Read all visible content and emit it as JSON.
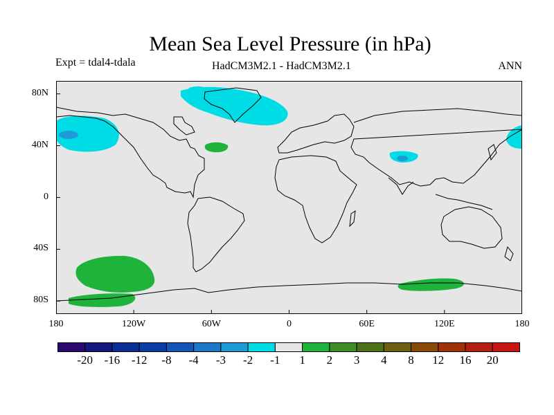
{
  "header": {
    "title": "Mean Sea Level Pressure (in hPa)",
    "experiment": "Expt = tdal4-tdala",
    "models": "HadCM3M2.1 - HadCM3M2.1",
    "season": "ANN"
  },
  "axes": {
    "lat_ticks": [
      {
        "value": 80,
        "label": "80N"
      },
      {
        "value": 40,
        "label": "40N"
      },
      {
        "value": 0,
        "label": "0"
      },
      {
        "value": -40,
        "label": "40S"
      },
      {
        "value": -80,
        "label": "80S"
      }
    ],
    "lon_ticks": [
      {
        "value": -180,
        "label": "180"
      },
      {
        "value": -120,
        "label": "120W"
      },
      {
        "value": -60,
        "label": "60W"
      },
      {
        "value": 0,
        "label": "0"
      },
      {
        "value": 60,
        "label": "60E"
      },
      {
        "value": 120,
        "label": "120E"
      },
      {
        "value": 180,
        "label": "180"
      }
    ],
    "lon_range": [
      -180,
      180
    ],
    "lat_range": [
      -90,
      90
    ]
  },
  "colorbar": {
    "colors": [
      "#2a0a6e",
      "#14187e",
      "#0a2d96",
      "#0a3ea6",
      "#1455b8",
      "#1e78c8",
      "#1e9ad6",
      "#00dce6",
      "#e6e6e6",
      "#20b33c",
      "#3c8f28",
      "#4e7018",
      "#6a6010",
      "#8a4a08",
      "#9e300a",
      "#b41e10",
      "#c81410"
    ],
    "labels": [
      "-20",
      "-16",
      "-12",
      "-8",
      "-4",
      "-3",
      "-2",
      "-1",
      "1",
      "2",
      "3",
      "4",
      "8",
      "12",
      "16",
      "20"
    ]
  },
  "colors": {
    "ocean_background": "#e6e6e6",
    "negative_light": "#00dce6",
    "negative_mid": "#1e9ad6",
    "positive_light": "#20b33c"
  }
}
